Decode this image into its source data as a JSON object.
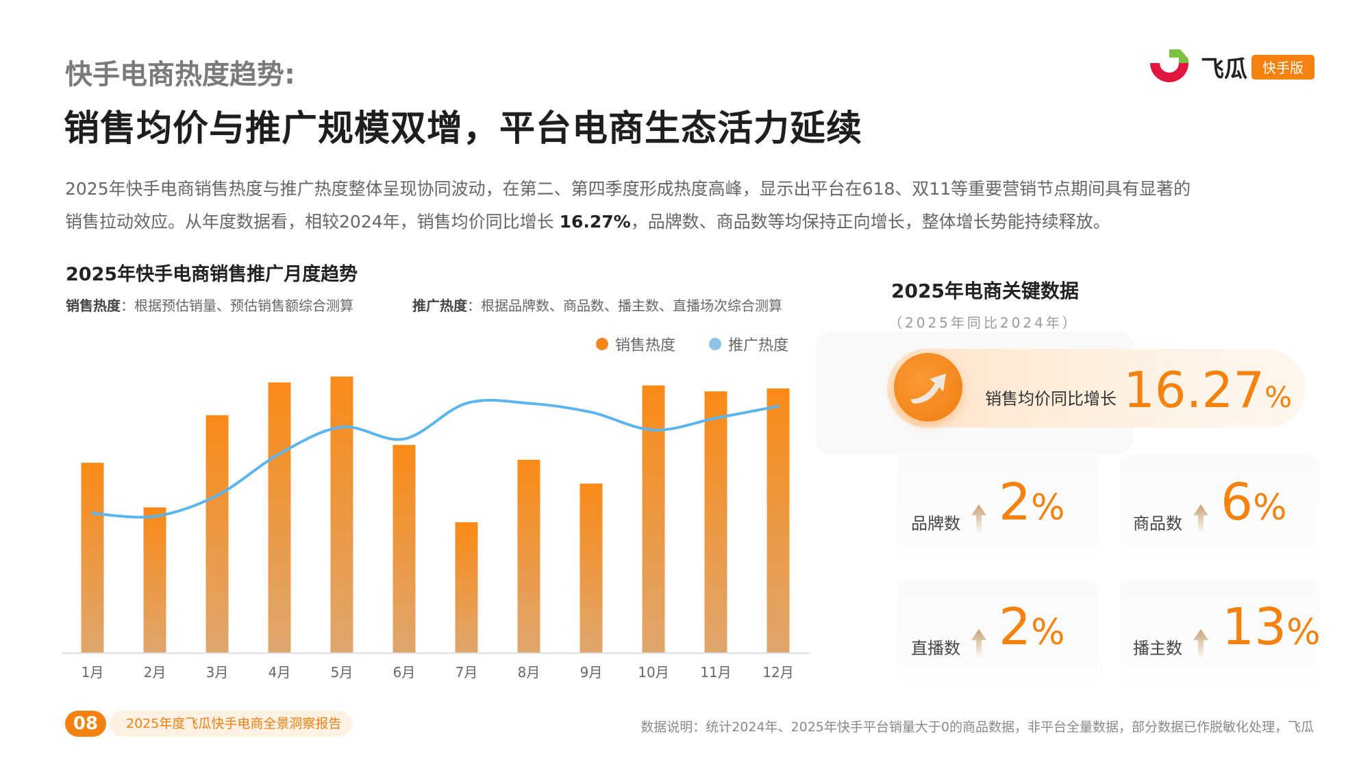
{
  "header": {
    "kicker": "快手电商热度趋势:",
    "headline": "销售均价与推广规模双增，平台电商生态活力延续",
    "paragraph_line1": "2025年快手电商销售热度与推广热度整体呈现协同波动，在第二、第四季度形成热度高峰，显示出平台在618、双11等重要营销节点期间具有显著的",
    "paragraph_line2_pre": "销售拉动效应。从年度数据看，相较2024年，销售均价同比增长 ",
    "paragraph_line2_bold": "16.27%",
    "paragraph_line2_post": "，品牌数、商品数等均保持正向增长，整体增长势能持续释放。"
  },
  "logo": {
    "text": "飞瓜",
    "badge": "快手版",
    "colors": {
      "red": "#e0173f",
      "green": "#7cc242",
      "orange": "#f5820f"
    }
  },
  "chart_section": {
    "title": "2025年快手电商销售推广月度趋势",
    "note_sales_label": "销售热度",
    "note_sales_text": "：根据预估销量、预估销售额综合测算",
    "note_promo_label": "推广热度",
    "note_promo_text": "：根据品牌数、商品数、播主数、直播场次综合测算"
  },
  "chart_data": {
    "type": "bar+line",
    "categories": [
      "1月",
      "2月",
      "3月",
      "4月",
      "5月",
      "6月",
      "7月",
      "8月",
      "9月",
      "10月",
      "11月",
      "12月"
    ],
    "series": [
      {
        "name": "销售热度",
        "type": "bar",
        "color": "#f7861a",
        "values": [
          64,
          49,
          80,
          91,
          93,
          70,
          44,
          65,
          57,
          90,
          88,
          89
        ]
      },
      {
        "name": "推广热度",
        "type": "line",
        "color": "#5ab4ef",
        "values": [
          47,
          46,
          53,
          67,
          76,
          72,
          84,
          84,
          81,
          75,
          79,
          83
        ]
      }
    ],
    "ylim": [
      0,
      100
    ],
    "y_axis_shown": false,
    "grid": false,
    "legend": "top-right"
  },
  "key_data": {
    "title": "2025年电商关键数据",
    "subtitle": "（2025年同比2024年）",
    "highlight": {
      "label": "销售均价同比增长",
      "value": "16.27",
      "unit": "%"
    },
    "cards": [
      {
        "label": "品牌数",
        "value": "2",
        "unit": "%"
      },
      {
        "label": "商品数",
        "value": "6",
        "unit": "%"
      },
      {
        "label": "直播数",
        "value": "2",
        "unit": "%"
      },
      {
        "label": "播主数",
        "value": "13",
        "unit": "%"
      }
    ]
  },
  "footer": {
    "page": "08",
    "report": "2025年度飞瓜快手电商全景洞察报告",
    "source": "数据说明：统计2024年、2025年快手平台销量大于0的商品数据，非平台全量数据，部分数据已作脱敏化处理，飞瓜"
  }
}
